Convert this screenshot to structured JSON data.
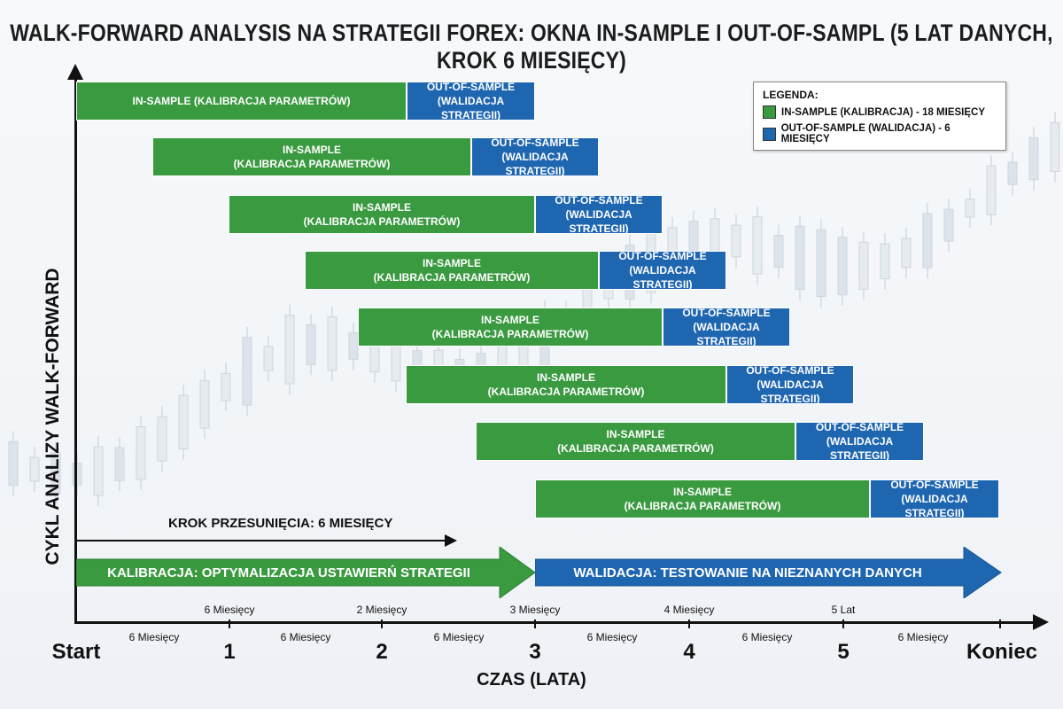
{
  "title": "WALK-FORWARD ANALYSIS NA STRATEGII FOREX: OKNA IN-SAMPLE I OUT-OF-SAMPL (5 LAT DANYCH, KROK 6 MIESIĘCY)",
  "y_axis_label": "CYKL ANALIZY WALK-FORWARD",
  "x_axis_label": "CZAS (LATA)",
  "legend": {
    "title": "LEGENDA:",
    "in_sample": "IN-SAMPLE (KALIBRACJA) - 18 MIESIĘCY",
    "out_sample": "OUT-OF-SAMPLE (WALIDACJA) - 6 MIESIĘCY"
  },
  "colors": {
    "in_sample": "#3a9a40",
    "out_sample": "#1f66b1"
  },
  "windows": [
    {
      "in": [
        "IN-SAMPLE (KALIBRACJA PARAMETRÓW)"
      ],
      "out": [
        "OUT-OF-SAMPLE",
        "(WALIDACJA STRATEGII)"
      ]
    },
    {
      "in": [
        "IN-SAMPLE",
        "(KALIBRACJA PARAMETRÓW)"
      ],
      "out": [
        "OUT-OF-SAMPLE",
        "(WALIDACJA STRATEGII)"
      ]
    },
    {
      "in": [
        "IN-SAMPLE",
        "(KALIBRACJA PARAMETRÓW)"
      ],
      "out": [
        "OUT-OF-SAMPLE",
        "(WALIDACJA STRATEGII)"
      ]
    },
    {
      "in": [
        "IN-SAMPLE",
        "(KALIBRACJA PARAMETRÓW)"
      ],
      "out": [
        "OUT-OF-SAMPLE",
        "(WALIDACJA STRATEGII)"
      ]
    },
    {
      "in": [
        "IN-SAMPLE",
        "(KALIBRACJA PARAMETRÓW)"
      ],
      "out": [
        "OUT-OF-SAMPLE",
        "(WALIDACJA STRATEGII)"
      ]
    },
    {
      "in": [
        "IN-SAMPLE",
        "(KALIBRACJA PARAMETRÓW)"
      ],
      "out": [
        "OUT-OF-SAMPLE",
        "(WALIDACJA STRATEGII)"
      ]
    },
    {
      "in": [
        "IN-SAMPLE",
        "(KALIBRACJA PARAMETRÓW)"
      ],
      "out": [
        "OUT-OF-SAMPLE",
        "(WALIDACJA STRATEGII)"
      ]
    },
    {
      "in": [
        "IN-SAMPLE",
        "(KALIBRACJA PARAMETRÓW)"
      ],
      "out": [
        "OUT-OF-SAMPLE",
        "(WALIDACJA STRATEGII)"
      ]
    }
  ],
  "step_label": "KROK PRZESUNIĘCIA: 6 MIESIĘCY",
  "phase_calibration": "KALIBRACJA: OPTYMALIZACJA USTAWIERŃ STRATEGII",
  "phase_validation": "WALIDACJA: TESTOWANIE NA NIEZNANYCH DANYCH",
  "upper_tick_labels": [
    "6 Miesięcy",
    "2 Miesięcy",
    "3 Miesięcy",
    "4 Miesięcy",
    "5 Lat"
  ],
  "lower_tick_labels": [
    "6 Miesięcy",
    "6 Miesięcy",
    "6 Miesięcy",
    "6 Miesięcy",
    "6 Miesięcy",
    "6 Miesięcy"
  ],
  "major_labels": [
    "Start",
    "1",
    "2",
    "3",
    "4",
    "5",
    "Koniec"
  ]
}
